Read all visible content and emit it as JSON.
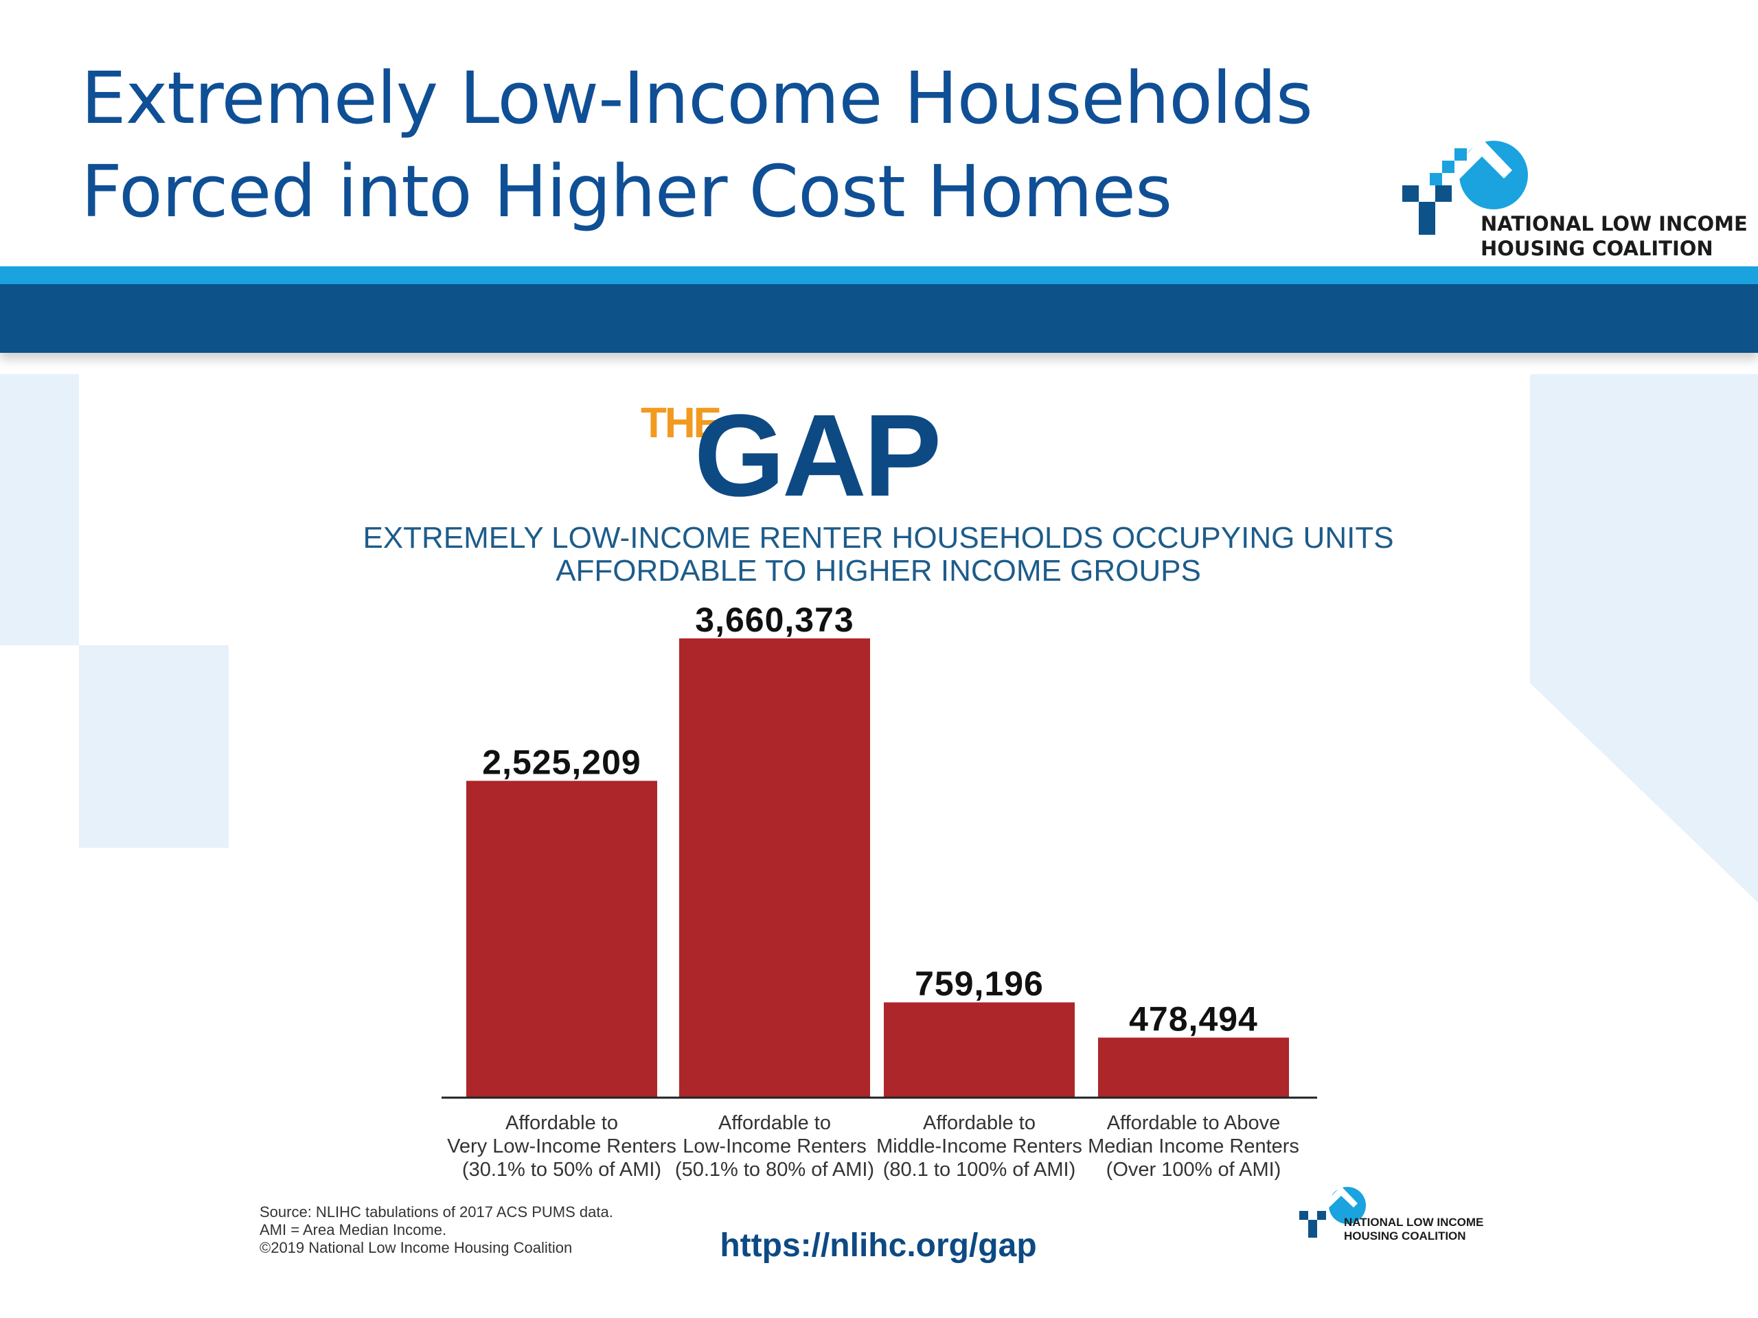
{
  "slide": {
    "title_line1": "Extremely Low-Income Households",
    "title_line2": "Forced into Higher Cost Homes"
  },
  "org": {
    "line1": "NATIONAL LOW INCOME",
    "line2": "HOUSING COALITION"
  },
  "infographic": {
    "brand_small": "THE",
    "brand_large": "GAP",
    "subtitle_line1": "EXTREMELY LOW-INCOME RENTER HOUSEHOLDS OCCUPYING UNITS",
    "subtitle_line2": "AFFORDABLE TO HIGHER INCOME GROUPS",
    "source_line1": "Source: NLIHC tabulations of 2017 ACS PUMS data.",
    "source_line2": "AMI = Area Median Income.",
    "source_line3": "©2019 National Low Income Housing Coalition",
    "url": "https://nlihc.org/gap"
  },
  "colors": {
    "title_blue": "#0f4f95",
    "band_light": "#1aa3de",
    "band_dark": "#0d5289",
    "bar_red": "#ad262a",
    "brand_orange": "#f29a1f",
    "brand_navy": "#0d4a84"
  },
  "chart_data": {
    "type": "bar",
    "categories": [
      [
        "Affordable to",
        "Very Low-Income Renters",
        "(30.1% to 50% of AMI)"
      ],
      [
        "Affordable to",
        "Low-Income Renters",
        "(50.1% to 80% of AMI)"
      ],
      [
        "Affordable to",
        "Middle-Income Renters",
        "(80.1 to 100% of AMI)"
      ],
      [
        "Affordable to Above",
        "Median Income Renters",
        "(Over 100% of AMI)"
      ]
    ],
    "values": [
      2525209,
      3660373,
      759196,
      478494
    ],
    "value_labels": [
      "2,525,209",
      "3,660,373",
      "759,196",
      "478,494"
    ],
    "ylim": [
      0,
      3660373
    ],
    "grid": false,
    "legend": "none"
  }
}
